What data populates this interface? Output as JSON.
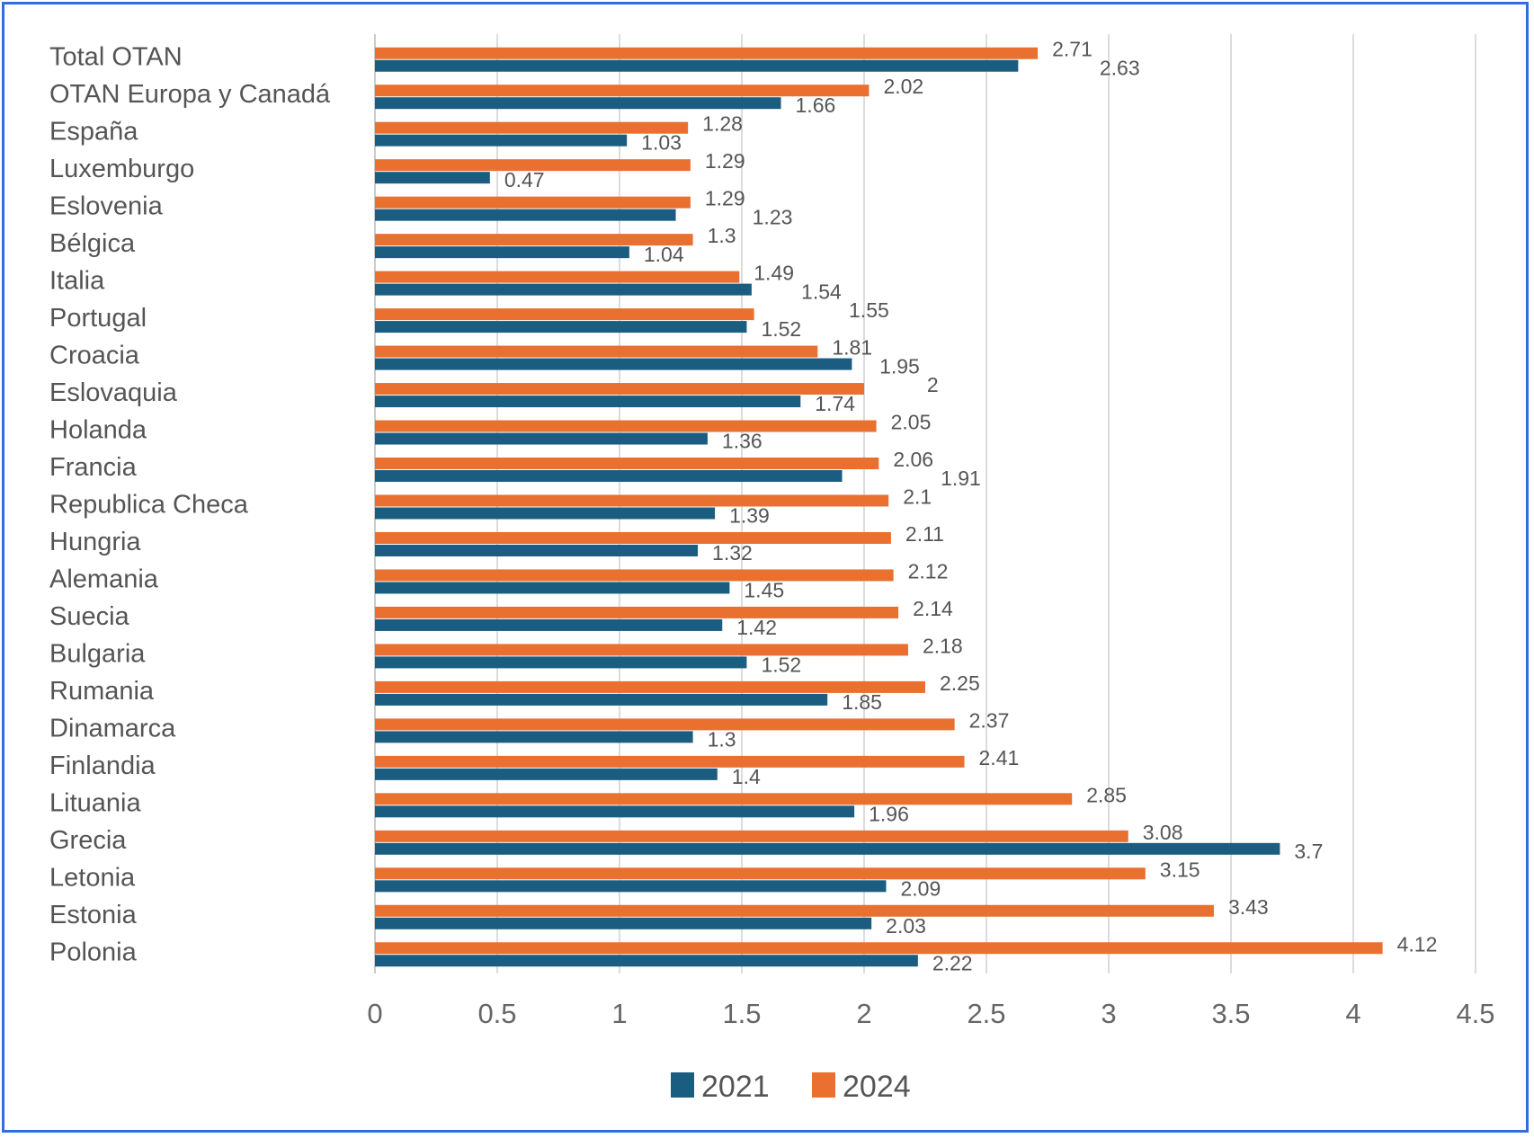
{
  "chart_data": {
    "type": "bar",
    "orientation": "horizontal",
    "categories": [
      "Total OTAN",
      "OTAN Europa y Canadá",
      "España",
      "Luxemburgo",
      "Eslovenia",
      "Bélgica",
      "Italia",
      "Portugal",
      "Croacia",
      "Eslovaquia",
      "Holanda",
      "Francia",
      "Republica Checa",
      "Hungria",
      "Alemania",
      "Suecia",
      "Bulgaria",
      "Rumania",
      "Dinamarca",
      "Finlandia",
      "Lituania",
      "Grecia",
      "Letonia",
      "Estonia",
      "Polonia"
    ],
    "series": [
      {
        "name": "2021",
        "color": "#1a5d80",
        "values": [
          2.63,
          1.66,
          1.03,
          0.47,
          1.23,
          1.04,
          1.54,
          1.52,
          1.95,
          1.74,
          1.36,
          1.91,
          1.39,
          1.32,
          1.45,
          1.42,
          1.52,
          1.85,
          1.3,
          1.4,
          1.96,
          3.7,
          2.09,
          2.03,
          2.22
        ]
      },
      {
        "name": "2024",
        "color": "#e9702f",
        "values": [
          2.71,
          2.02,
          1.28,
          1.29,
          1.29,
          1.3,
          1.49,
          1.55,
          1.81,
          2,
          2.05,
          2.06,
          2.1,
          2.11,
          2.12,
          2.14,
          2.18,
          2.25,
          2.37,
          2.41,
          2.85,
          3.08,
          3.15,
          3.43,
          4.12
        ]
      }
    ],
    "xlim": [
      0,
      4.5
    ],
    "xticks": [
      "0",
      "0.5",
      "1",
      "1.5",
      "2",
      "2.5",
      "3",
      "3.5",
      "4",
      "4.5"
    ],
    "grid": true,
    "legend": "bottom",
    "title": "",
    "xlabel": "",
    "ylabel": ""
  }
}
